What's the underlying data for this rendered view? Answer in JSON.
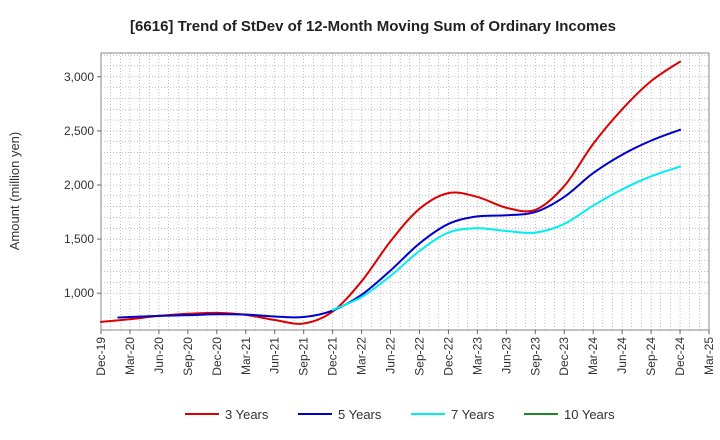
{
  "chart_data": {
    "type": "line",
    "title": "[6616]  Trend of StDev of 12-Month Moving Sum of Ordinary Incomes",
    "xlabel": "",
    "ylabel": "Amount (million yen)",
    "ylim": [
      660,
      3220
    ],
    "yticks": [
      1000,
      1500,
      2000,
      2500,
      3000
    ],
    "ytick_labels": [
      "1,000",
      "1,500",
      "2,000",
      "2,500",
      "3,000"
    ],
    "xtick_labels": [
      "Dec-19",
      "Mar-20",
      "Jun-20",
      "Sep-20",
      "Dec-20",
      "Mar-21",
      "Jun-21",
      "Sep-21",
      "Dec-21",
      "Mar-22",
      "Jun-22",
      "Sep-22",
      "Dec-22",
      "Mar-23",
      "Jun-23",
      "Sep-23",
      "Dec-23",
      "Mar-24",
      "Jun-24",
      "Sep-24",
      "Dec-24",
      "Mar-25"
    ],
    "grid": true,
    "legend_position": "bottom",
    "series": [
      {
        "name": "3 Years",
        "color": "#dd0000",
        "values": [
          [
            0,
            735
          ],
          [
            1,
            760
          ],
          [
            2,
            790
          ],
          [
            3,
            810
          ],
          [
            4,
            818
          ],
          [
            5,
            800
          ],
          [
            6,
            752
          ],
          [
            7,
            720
          ],
          [
            8,
            830
          ],
          [
            9,
            1110
          ],
          [
            10,
            1480
          ],
          [
            11,
            1780
          ],
          [
            12,
            1925
          ],
          [
            13,
            1890
          ],
          [
            14,
            1790
          ],
          [
            15,
            1770
          ],
          [
            16,
            1990
          ],
          [
            17,
            2380
          ],
          [
            18,
            2700
          ],
          [
            19,
            2960
          ],
          [
            20,
            3140
          ]
        ]
      },
      {
        "name": "5 Years",
        "color": "#0000cc",
        "values": [
          [
            0.6,
            775
          ],
          [
            1,
            780
          ],
          [
            2,
            790
          ],
          [
            3,
            797
          ],
          [
            4,
            805
          ],
          [
            5,
            803
          ],
          [
            6,
            785
          ],
          [
            7,
            780
          ],
          [
            8,
            840
          ],
          [
            9,
            985
          ],
          [
            10,
            1210
          ],
          [
            11,
            1460
          ],
          [
            12,
            1640
          ],
          [
            13,
            1710
          ],
          [
            14,
            1720
          ],
          [
            15,
            1750
          ],
          [
            16,
            1890
          ],
          [
            17,
            2110
          ],
          [
            18,
            2280
          ],
          [
            19,
            2410
          ],
          [
            20,
            2510
          ]
        ]
      },
      {
        "name": "7 Years",
        "color": "#00eeee",
        "values": [
          [
            8,
            845
          ],
          [
            9,
            965
          ],
          [
            10,
            1160
          ],
          [
            11,
            1390
          ],
          [
            12,
            1560
          ],
          [
            13,
            1600
          ],
          [
            14,
            1575
          ],
          [
            15,
            1560
          ],
          [
            16,
            1640
          ],
          [
            17,
            1810
          ],
          [
            18,
            1960
          ],
          [
            19,
            2080
          ],
          [
            20,
            2170
          ]
        ]
      },
      {
        "name": "10 Years",
        "color": "#228822",
        "values": []
      }
    ]
  }
}
